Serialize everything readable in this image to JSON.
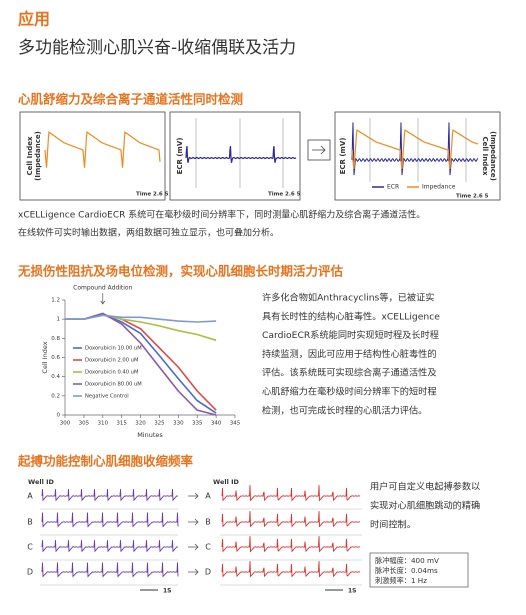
{
  "header": {
    "title": "应用",
    "subtitle": "多功能检测心肌兴奋-收缩偶联及活力"
  },
  "section1": {
    "title": "心肌舒缩力及综合离子通道活性同时检测",
    "panel1": {
      "ylabel": [
        "Cell Index",
        "(Impedance)"
      ],
      "time": "Time 2.6 5"
    },
    "panel2": {
      "ylabel": "ECR (mV)",
      "time": "Time 2.6 5"
    },
    "panel3": {
      "ylabel_left": "ECR (mV)",
      "ylabel_right": [
        "Cell Index",
        "(Impedance)"
      ],
      "legend": [
        "ECR",
        "Impedance"
      ],
      "time": "Time 2.6 5"
    },
    "text": [
      "xCELLigence CardioECR 系统可在毫秒级时间分辨率下，同时测量心肌舒缩力及综合离子通道活性。",
      "在线软件可实时输出数据，两组数据可独立显示，也可叠加分析。"
    ]
  },
  "section2": {
    "title": "无损伤性阻抗及场电位检测，实现心肌细胞长时期活力评估",
    "chart": {
      "type": "line",
      "annotation": "Compound Addition",
      "xlabel": "Minutes",
      "ylabel": "Cell Index",
      "x": [
        300,
        305,
        310,
        315,
        320,
        325,
        330,
        335,
        340
      ],
      "xlim": [
        300,
        345
      ],
      "xticks": [
        300,
        305,
        310,
        315,
        320,
        325,
        330,
        335,
        340,
        345
      ],
      "ylim": [
        0,
        1.2
      ],
      "yticks": [
        0,
        0.2,
        0.4,
        0.6,
        0.8,
        1,
        1.2
      ],
      "series": [
        {
          "name": "Doxorubicin 10.00 uM",
          "color": "#4a6cc8",
          "values": [
            1.0,
            1.0,
            1.05,
            0.97,
            0.85,
            0.62,
            0.38,
            0.15,
            0.02
          ]
        },
        {
          "name": "Doxorubicin 2.00 uM",
          "color": "#e04848",
          "values": [
            1.0,
            1.0,
            1.05,
            1.0,
            0.9,
            0.7,
            0.5,
            0.25,
            0.05
          ]
        },
        {
          "name": "Doxorubicin 0.40 uM",
          "color": "#a8c040",
          "values": [
            1.0,
            1.0,
            1.05,
            1.0,
            0.97,
            0.93,
            0.88,
            0.84,
            0.78
          ]
        },
        {
          "name": "Doxorubicin 80.00 uM",
          "color": "#8a5aa8",
          "values": [
            1.0,
            1.0,
            1.06,
            0.95,
            0.75,
            0.5,
            0.25,
            0.05,
            0.0
          ]
        },
        {
          "name": "Negative Control",
          "color": "#7f9ad0",
          "values": [
            1.0,
            1.0,
            1.04,
            1.02,
            1.02,
            1.0,
            0.98,
            0.97,
            0.98
          ]
        }
      ]
    },
    "text": [
      "许多化合物如Anthracyclins等，已被证实",
      "具有长时性的结构心脏毒性。xCELLigence",
      "CardioECR系统能同时实现短时程及长时程",
      "持续监测，因此可应用于结构性心脏毒性的",
      "评估。该系统既可实现综合离子通道活性及",
      "心肌舒缩力在毫秒级时间分辨率下的短时程",
      "检测，也可完成长时程的心肌活力评估。"
    ]
  },
  "section3": {
    "title": "起搏功能控制心肌细胞收缩频率",
    "well_id": "Well ID",
    "wells": [
      "A",
      "B",
      "C",
      "D"
    ],
    "scale": "1S",
    "text": [
      "用户可自定义电起搏参数以",
      "实现对心肌细胞跳动的精确",
      "时间控制。"
    ],
    "params": [
      "脉冲幅度：400 mV",
      "脉冲长度：0.04ms",
      "刺激频率：1 Hz"
    ]
  }
}
